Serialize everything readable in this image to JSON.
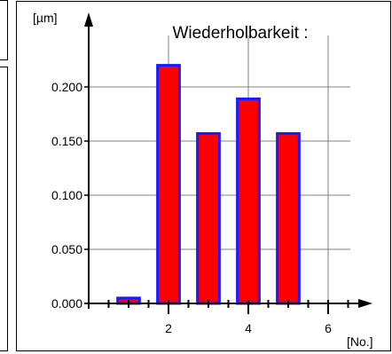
{
  "chart_data": {
    "type": "bar",
    "title": "Wiederholbarkeit :",
    "ylabel": "[µm]",
    "xlabel": "[No.]",
    "x": [
      1,
      2,
      3,
      4,
      5
    ],
    "values": [
      0.005,
      0.22,
      0.157,
      0.189,
      0.157
    ],
    "ylim": [
      0,
      0.25
    ],
    "xlim": [
      0,
      6.5
    ],
    "y_ticks": [
      "0.000",
      "0.050",
      "0.100",
      "0.150",
      "0.200"
    ],
    "x_ticks": [
      "2",
      "4",
      "6"
    ],
    "grid": true,
    "colors": {
      "bar_fill": "#ff0000",
      "bar_edge": "#1a1aff",
      "grid": "#808080"
    }
  }
}
